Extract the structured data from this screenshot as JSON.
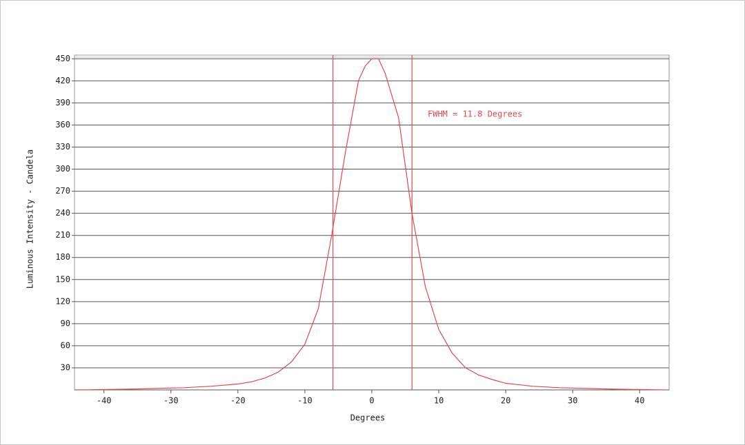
{
  "chart_data": {
    "type": "line",
    "x_label": "Degrees",
    "y_label": "Luminous Intensity - Candela",
    "annotation": "FWHM = 11.8 Degrees",
    "x": [
      -44,
      -40,
      -36,
      -32,
      -28,
      -24,
      -20,
      -18,
      -16,
      -14,
      -12,
      -10,
      -8,
      -6,
      -4,
      -2,
      -1,
      0,
      1,
      2,
      4,
      6,
      8,
      10,
      12,
      14,
      16,
      18,
      20,
      24,
      28,
      32,
      36,
      40,
      44
    ],
    "values": [
      0,
      0.5,
      1,
      2,
      3,
      5,
      8,
      11,
      16,
      24,
      38,
      62,
      110,
      210,
      320,
      420,
      440,
      450,
      450,
      430,
      370,
      240,
      140,
      82,
      50,
      30,
      20,
      14,
      9,
      5,
      3,
      2,
      1,
      0.5,
      0
    ],
    "color": "#e8474c",
    "vlines": [
      -5.8,
      6.0
    ],
    "vline_color": "#e8474c",
    "annotation_color": "#e8474c",
    "xlim": [
      -44.4,
      44.4
    ],
    "ylim": [
      0,
      455
    ],
    "xticks": [
      -40,
      -30,
      -20,
      -10,
      0,
      10,
      20,
      30,
      40
    ],
    "yticks": [
      30,
      60,
      90,
      120,
      150,
      180,
      210,
      240,
      270,
      300,
      330,
      360,
      390,
      420,
      450
    ],
    "grid": true
  }
}
